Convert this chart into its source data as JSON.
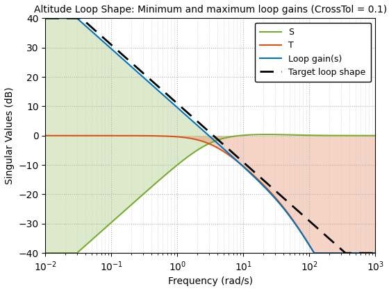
{
  "title": "Altitude Loop Shape: Minimum and maximum loop gains (CrossTol = 0.1)",
  "xlabel": "Frequency (rad/s)",
  "ylabel": "Singular Values (dB)",
  "xlim_log": [
    -2,
    3
  ],
  "ylim": [
    -40,
    40
  ],
  "legend_entries": [
    "S",
    "T",
    "Loop gain(s)",
    "Target loop shape"
  ],
  "colors": {
    "S": "#77ac30",
    "T": "#d95319",
    "loop": "#0072bd",
    "target": "#000000",
    "S_fill": "#77ac30",
    "T_fill": "#d95319"
  },
  "wc": 3.0,
  "wp": 50.0,
  "target_fc": 3.5,
  "S_bound_fill_alpha": 0.25,
  "T_bound_fill_alpha": 0.25,
  "figsize": [
    5.6,
    4.2
  ],
  "dpi": 100
}
